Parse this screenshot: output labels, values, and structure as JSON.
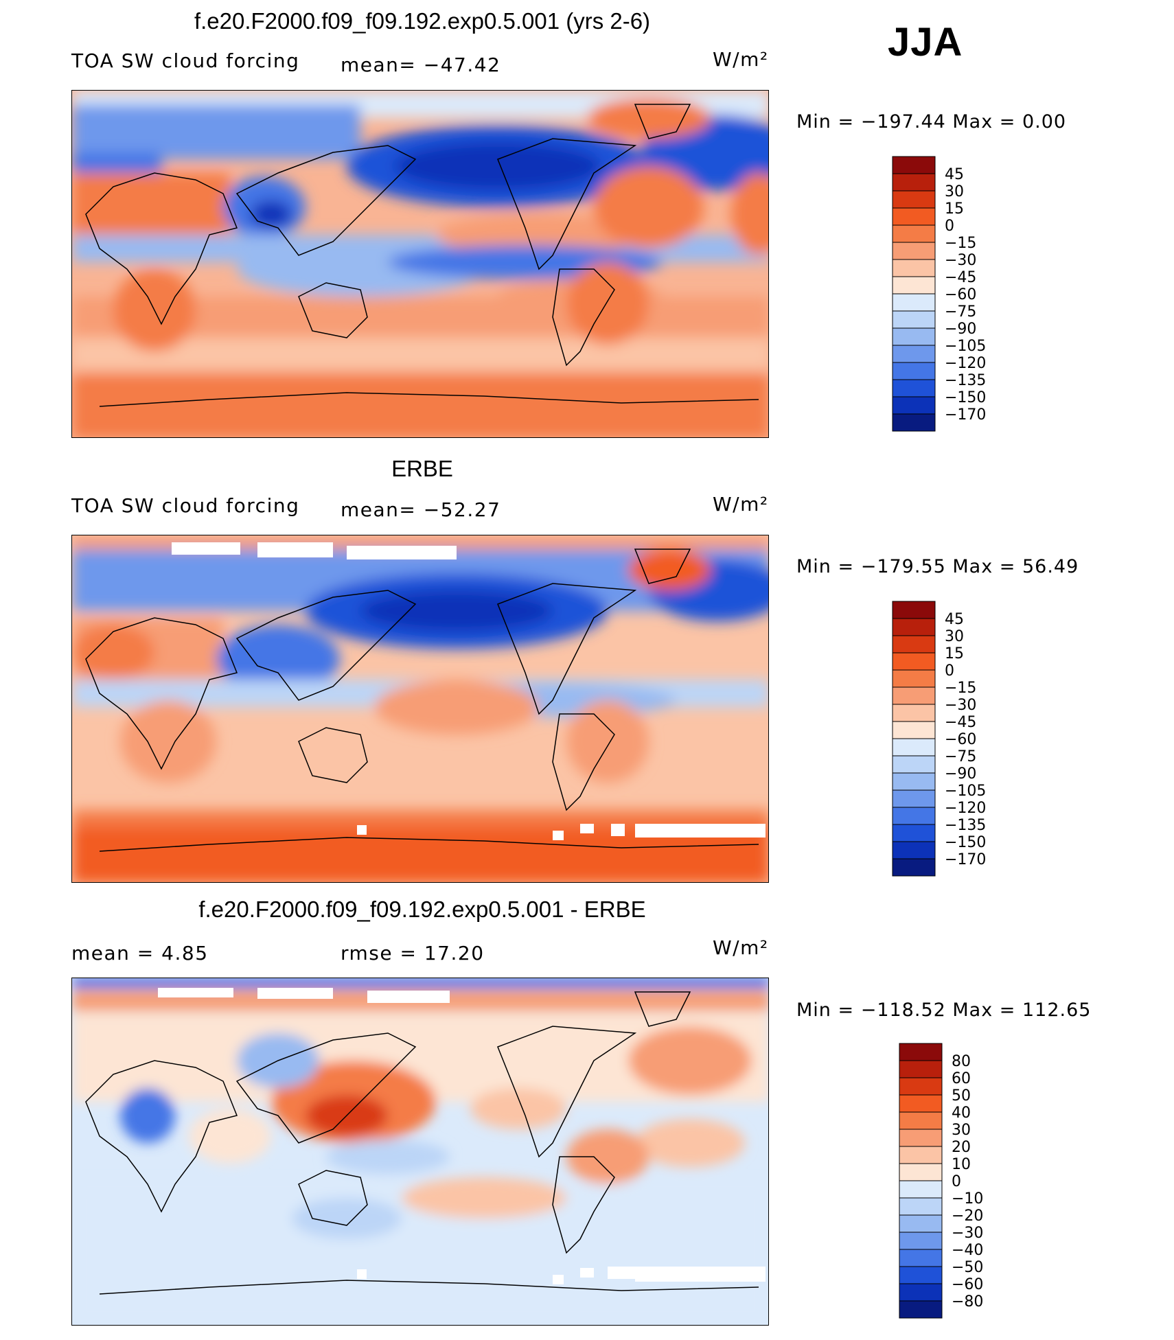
{
  "page_title": "",
  "season": "JJA",
  "panels": [
    {
      "title": "f.e20.F2000.f09_f09.192.exp0.5.001 (yrs 2-6)",
      "left_label": "TOA SW cloud forcing",
      "stat_label": "mean= −47.42",
      "units": "W/m²",
      "minmax": "Min = −197.44 Max = 0.00"
    },
    {
      "title": "ERBE",
      "left_label": "TOA SW cloud forcing",
      "stat_label": "mean= −52.27",
      "units": "W/m²",
      "minmax": "Min = −179.55 Max = 56.49"
    },
    {
      "title": "f.e20.F2000.f09_f09.192.exp0.5.001 - ERBE",
      "left_label": "mean = 4.85",
      "stat_label": "rmse = 17.20",
      "units": "W/m²",
      "minmax": "Min = −118.52 Max = 112.65"
    }
  ],
  "chart_data": [
    {
      "type": "heatmap",
      "title": "f.e20.F2000.f09_f09.192.exp0.5.001 (yrs 2-6)",
      "variable": "TOA SW cloud forcing",
      "units": "W/m²",
      "mean": -47.42,
      "min": -197.44,
      "max": 0.0,
      "levels": [
        "45",
        "30",
        "15",
        "0",
        "−15",
        "−30",
        "−45",
        "−60",
        "−75",
        "−90",
        "−105",
        "−120",
        "−135",
        "−150",
        "−170"
      ],
      "colors": [
        "#8b0a0a",
        "#b8200c",
        "#d93a12",
        "#f25b22",
        "#f47c46",
        "#f79d75",
        "#fbc4a6",
        "#fde5d4",
        "#dbeafb",
        "#bcd5f7",
        "#98baf1",
        "#6e98ec",
        "#4476e6",
        "#1f52d8",
        "#0c32b8",
        "#081b80"
      ]
    },
    {
      "type": "heatmap",
      "title": "ERBE",
      "variable": "TOA SW cloud forcing",
      "units": "W/m²",
      "mean": -52.27,
      "min": -179.55,
      "max": 56.49,
      "levels": [
        "45",
        "30",
        "15",
        "0",
        "−15",
        "−30",
        "−45",
        "−60",
        "−75",
        "−90",
        "−105",
        "−120",
        "−135",
        "−150",
        "−170"
      ],
      "colors": [
        "#8b0a0a",
        "#b8200c",
        "#d93a12",
        "#f25b22",
        "#f47c46",
        "#f79d75",
        "#fbc4a6",
        "#fde5d4",
        "#dbeafb",
        "#bcd5f7",
        "#98baf1",
        "#6e98ec",
        "#4476e6",
        "#1f52d8",
        "#0c32b8",
        "#081b80"
      ]
    },
    {
      "type": "heatmap",
      "title": "f.e20.F2000.f09_f09.192.exp0.5.001 - ERBE",
      "units": "W/m²",
      "mean": 4.85,
      "rmse": 17.2,
      "min": -118.52,
      "max": 112.65,
      "levels": [
        "80",
        "60",
        "50",
        "40",
        "30",
        "20",
        "10",
        "0",
        "−10",
        "−20",
        "−30",
        "−40",
        "−50",
        "−60",
        "−80"
      ],
      "colors": [
        "#8b0a0a",
        "#b8200c",
        "#d93a12",
        "#f25b22",
        "#f47c46",
        "#f79d75",
        "#fbc4a6",
        "#fde5d4",
        "#dbeafb",
        "#bcd5f7",
        "#98baf1",
        "#6e98ec",
        "#4476e6",
        "#1f52d8",
        "#0c32b8",
        "#081b80"
      ]
    }
  ]
}
